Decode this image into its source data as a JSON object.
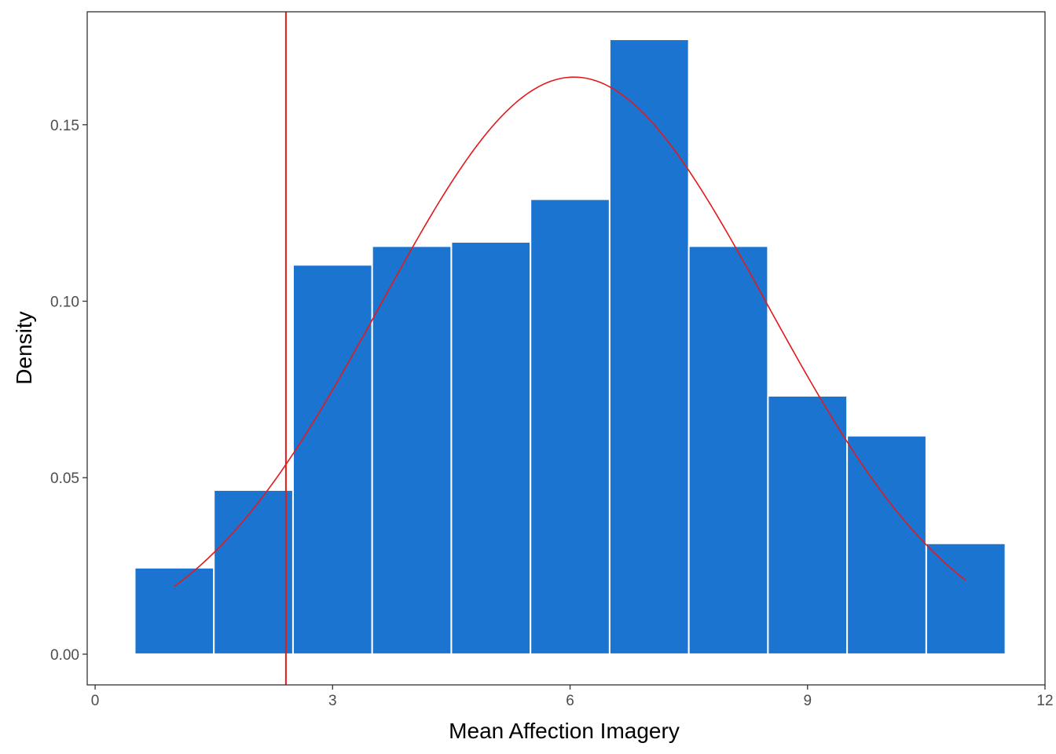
{
  "chart_data": {
    "type": "bar",
    "subtype": "histogram-with-normal-density",
    "title": "",
    "xlabel": "Mean Affection Imagery",
    "ylabel": "Density",
    "xlim": [
      -0.1,
      12.0
    ],
    "ylim": [
      -0.0087,
      0.182
    ],
    "x_ticks": [
      0,
      3,
      6,
      9,
      12
    ],
    "x_tick_labels": [
      "0",
      "3",
      "6",
      "9",
      "12"
    ],
    "y_ticks": [
      0.0,
      0.05,
      0.1,
      0.15
    ],
    "y_tick_labels": [
      "0.00",
      "0.05",
      "0.10",
      "0.15"
    ],
    "grid": false,
    "legend": "none",
    "bar_color": "#1b75d0",
    "bar_outline_color": "#ffffff",
    "bins": [
      {
        "x0": 0.5,
        "x1": 1.5,
        "value": 0.0245
      },
      {
        "x0": 1.5,
        "x1": 2.5,
        "value": 0.0465
      },
      {
        "x0": 2.5,
        "x1": 3.5,
        "value": 0.1103
      },
      {
        "x0": 3.5,
        "x1": 4.5,
        "value": 0.1156
      },
      {
        "x0": 4.5,
        "x1": 5.5,
        "value": 0.1168
      },
      {
        "x0": 5.5,
        "x1": 6.5,
        "value": 0.1289
      },
      {
        "x0": 6.5,
        "x1": 7.5,
        "value": 0.1742
      },
      {
        "x0": 7.5,
        "x1": 8.5,
        "value": 0.1156
      },
      {
        "x0": 8.5,
        "x1": 9.5,
        "value": 0.0732
      },
      {
        "x0": 9.5,
        "x1": 10.5,
        "value": 0.0619
      },
      {
        "x0": 10.5,
        "x1": 11.5,
        "value": 0.0314
      }
    ],
    "density_curve": {
      "type": "normal",
      "mean": 6.05,
      "sd": 2.44,
      "x_range": [
        1.0,
        11.0
      ],
      "color": "#e31a1c"
    },
    "reference_line": {
      "orientation": "vertical",
      "x": 2.41,
      "color": "#e31a1c"
    }
  }
}
